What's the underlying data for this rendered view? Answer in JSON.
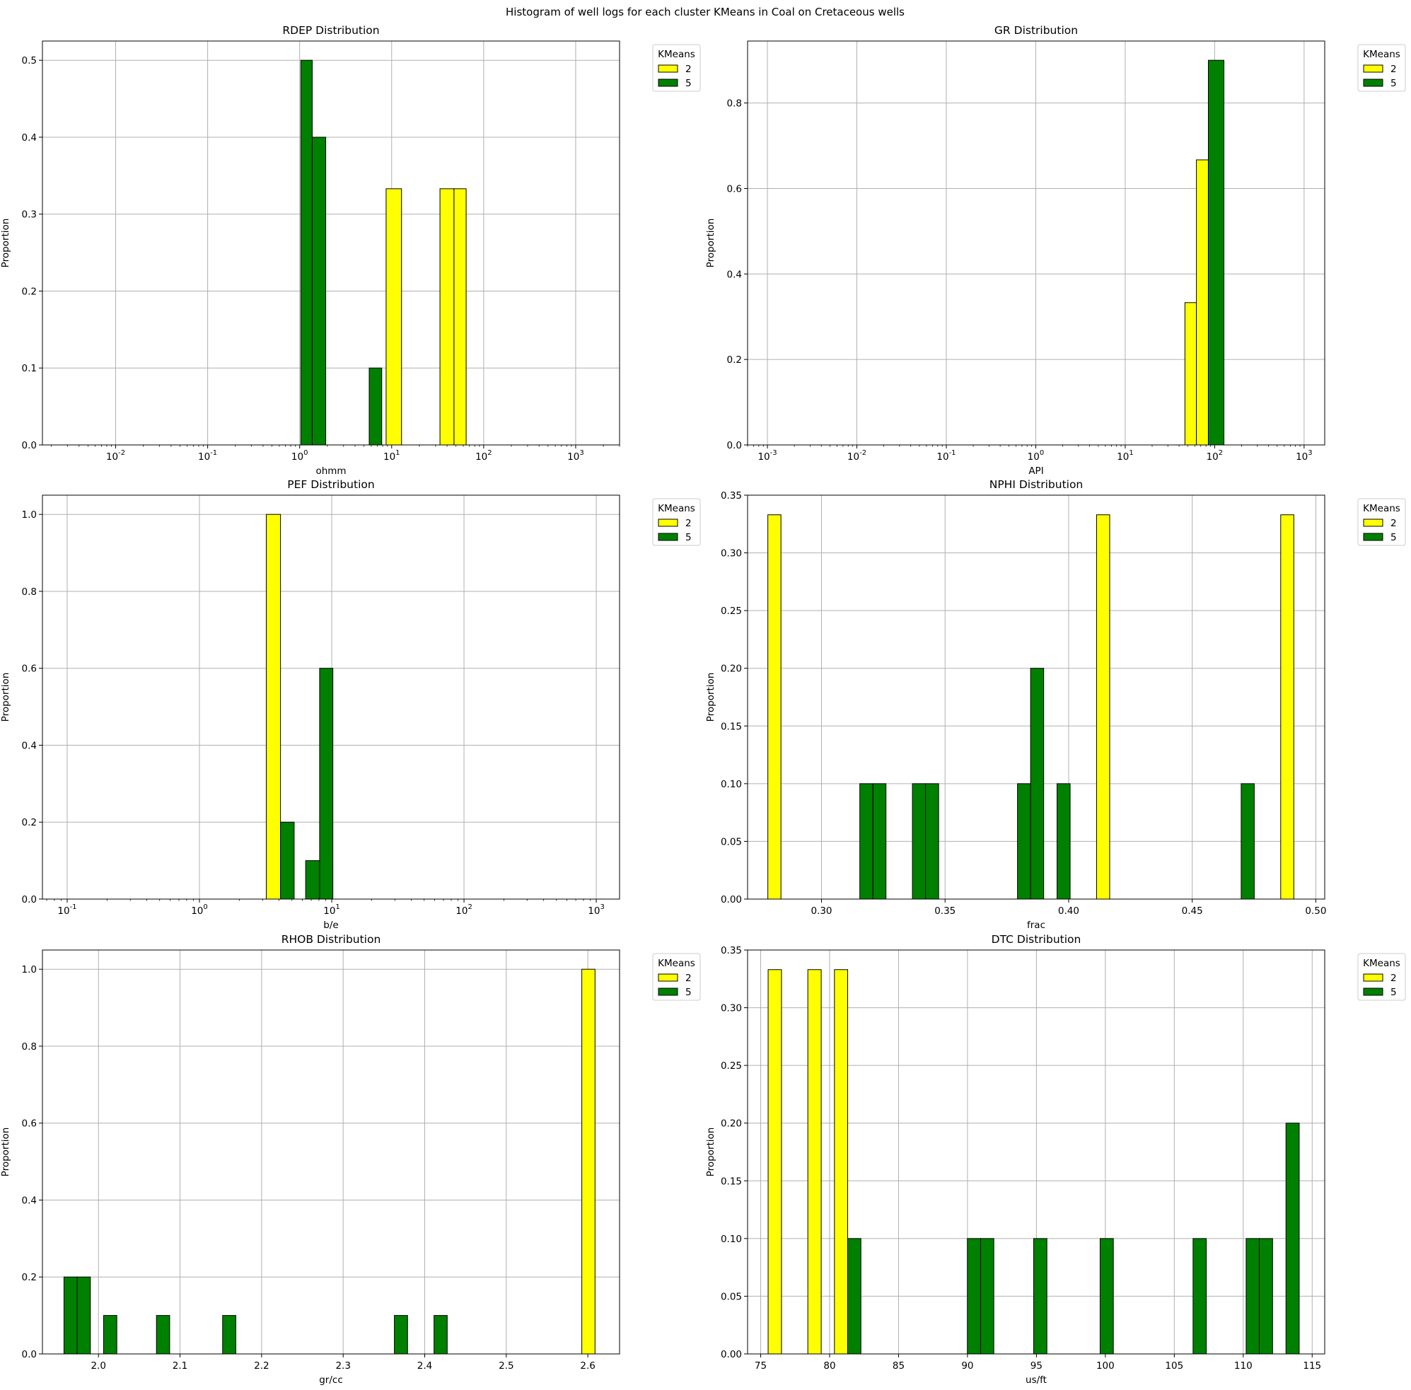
{
  "figure_title": "Histogram of well logs for each cluster KMeans in Coal on Cretaceous wells",
  "legend": {
    "title": "KMeans",
    "entries": [
      {
        "label": "2",
        "color": "#ffff00"
      },
      {
        "label": "5",
        "color": "#008000"
      }
    ]
  },
  "chart_data": [
    {
      "type": "bar",
      "title": "RDEP Distribution",
      "xlabel": "ohmm",
      "ylabel": "Proportion",
      "xscale": "log",
      "xlim": [
        0.0016,
        3000
      ],
      "ylim": [
        0,
        0.525
      ],
      "xticks": [
        0.01,
        0.1,
        1,
        10,
        100,
        1000
      ],
      "xticklabels": [
        "10^-2",
        "10^-1",
        "10^0",
        "10^1",
        "10^2",
        "10^3"
      ],
      "yticks": [
        0,
        0.1,
        0.2,
        0.3,
        0.4,
        0.5
      ],
      "yticklabels": [
        "0.0",
        "0.1",
        "0.2",
        "0.3",
        "0.4",
        "0.5"
      ],
      "grid": true,
      "legend_position": "outside-top-right",
      "series": [
        {
          "name": "2",
          "color": "#ffff00",
          "bins": [
            [
              8.7,
              12.8,
              0.333
            ],
            [
              33.5,
              47.6,
              0.333
            ],
            [
              47.6,
              64.5,
              0.333
            ]
          ]
        },
        {
          "name": "5",
          "color": "#008000",
          "bins": [
            [
              1.03,
              1.37,
              0.5
            ],
            [
              1.37,
              1.92,
              0.4
            ],
            [
              5.7,
              7.8,
              0.1
            ]
          ]
        }
      ]
    },
    {
      "type": "bar",
      "title": "GR Distribution",
      "xlabel": "API",
      "ylabel": "Proportion",
      "xscale": "log",
      "xlim": [
        0.0006,
        1700
      ],
      "ylim": [
        0,
        0.945
      ],
      "xticks": [
        0.001,
        0.01,
        0.1,
        1,
        10,
        100,
        1000
      ],
      "xticklabels": [
        "10^-3",
        "10^-2",
        "10^-1",
        "10^0",
        "10^1",
        "10^2",
        "10^3"
      ],
      "yticks": [
        0,
        0.2,
        0.4,
        0.6,
        0.8
      ],
      "yticklabels": [
        "0.0",
        "0.2",
        "0.4",
        "0.6",
        "0.8"
      ],
      "grid": true,
      "legend_position": "outside-top-right",
      "series": [
        {
          "name": "2",
          "color": "#ffff00",
          "bins": [
            [
              46.5,
              62.5,
              0.333
            ],
            [
              62.5,
              85,
              0.667
            ]
          ]
        },
        {
          "name": "5",
          "color": "#008000",
          "bins": [
            [
              85,
              127,
              0.9
            ]
          ]
        }
      ]
    },
    {
      "type": "bar",
      "title": "PEF Distribution",
      "xlabel": "b/e",
      "ylabel": "Proportion",
      "xscale": "log",
      "xlim": [
        0.065,
        1500
      ],
      "ylim": [
        0,
        1.05
      ],
      "xticks": [
        0.1,
        1,
        10,
        100,
        1000
      ],
      "xticklabels": [
        "10^-1",
        "10^0",
        "10^1",
        "10^2",
        "10^3"
      ],
      "yticks": [
        0,
        0.2,
        0.4,
        0.6,
        0.8,
        1.0
      ],
      "yticklabels": [
        "0.0",
        "0.2",
        "0.4",
        "0.6",
        "0.8",
        "1.0"
      ],
      "grid": true,
      "legend_position": "outside-top-right",
      "series": [
        {
          "name": "2",
          "color": "#ffff00",
          "bins": [
            [
              3.2,
              4.1,
              1.0
            ]
          ]
        },
        {
          "name": "5",
          "color": "#008000",
          "bins": [
            [
              4.1,
              5.2,
              0.2
            ],
            [
              6.35,
              8.1,
              0.1
            ],
            [
              8.1,
              10.2,
              0.6
            ]
          ]
        }
      ]
    },
    {
      "type": "bar",
      "title": "NPHI Distribution",
      "xlabel": "frac",
      "ylabel": "Proportion",
      "xscale": "linear",
      "xlim": [
        0.2701,
        0.5036
      ],
      "ylim": [
        0,
        0.35
      ],
      "xticks": [
        0.3,
        0.35,
        0.4,
        0.45,
        0.5
      ],
      "xticklabels": [
        "0.30",
        "0.35",
        "0.40",
        "0.45",
        "0.50"
      ],
      "yticks": [
        0,
        0.05,
        0.1,
        0.15,
        0.2,
        0.25,
        0.3,
        0.35
      ],
      "yticklabels": [
        "0.00",
        "0.05",
        "0.10",
        "0.15",
        "0.20",
        "0.25",
        "0.30",
        "0.35"
      ],
      "grid": true,
      "legend_position": "outside-top-right",
      "series": [
        {
          "name": "2",
          "color": "#ffff00",
          "bins": [
            [
              0.2783,
              0.2836,
              0.333
            ],
            [
              0.4113,
              0.4166,
              0.333
            ],
            [
              0.4858,
              0.4911,
              0.333
            ]
          ]
        },
        {
          "name": "5",
          "color": "#008000",
          "bins": [
            [
              0.3155,
              0.3208,
              0.1
            ],
            [
              0.3208,
              0.3261,
              0.1
            ],
            [
              0.3368,
              0.3421,
              0.1
            ],
            [
              0.3421,
              0.3474,
              0.1
            ],
            [
              0.3793,
              0.3846,
              0.1
            ],
            [
              0.3846,
              0.3899,
              0.2
            ],
            [
              0.3953,
              0.4006,
              0.1
            ],
            [
              0.4698,
              0.4751,
              0.1
            ]
          ]
        }
      ]
    },
    {
      "type": "bar",
      "title": "RHOB Distribution",
      "xlabel": "gr/cc",
      "ylabel": "Proportion",
      "xscale": "linear",
      "xlim": [
        1.9313,
        2.6389
      ],
      "ylim": [
        0,
        1.05
      ],
      "xticks": [
        2.0,
        2.1,
        2.2,
        2.3,
        2.4,
        2.5,
        2.6
      ],
      "xticklabels": [
        "2.0",
        "2.1",
        "2.2",
        "2.3",
        "2.4",
        "2.5",
        "2.6"
      ],
      "yticks": [
        0,
        0.2,
        0.4,
        0.6,
        0.8,
        1.0
      ],
      "yticklabels": [
        "0.0",
        "0.2",
        "0.4",
        "0.6",
        "0.8",
        "1.0"
      ],
      "grid": true,
      "legend_position": "outside-top-right",
      "series": [
        {
          "name": "2",
          "color": "#ffff00",
          "bins": [
            [
              2.5926,
              2.6088,
              1.0
            ]
          ]
        },
        {
          "name": "5",
          "color": "#008000",
          "bins": [
            [
              1.9577,
              1.9739,
              0.2
            ],
            [
              1.9739,
              1.9901,
              0.2
            ],
            [
              2.0063,
              2.0225,
              0.1
            ],
            [
              2.0711,
              2.0873,
              0.1
            ],
            [
              2.1522,
              2.1684,
              0.1
            ],
            [
              2.3628,
              2.379,
              0.1
            ],
            [
              2.4114,
              2.4276,
              0.1
            ]
          ]
        }
      ]
    },
    {
      "type": "bar",
      "title": "DTC Distribution",
      "xlabel": "us/ft",
      "ylabel": "Proportion",
      "xscale": "linear",
      "xlim": [
        74.05,
        115.91
      ],
      "ylim": [
        0,
        0.35
      ],
      "xticks": [
        75,
        80,
        85,
        90,
        95,
        100,
        105,
        110,
        115
      ],
      "xticklabels": [
        "75",
        "80",
        "85",
        "90",
        "95",
        "100",
        "105",
        "110",
        "115"
      ],
      "yticks": [
        0,
        0.05,
        0.1,
        0.15,
        0.2,
        0.25,
        0.3,
        0.35
      ],
      "yticklabels": [
        "0.00",
        "0.05",
        "0.10",
        "0.15",
        "0.20",
        "0.25",
        "0.30",
        "0.35"
      ],
      "grid": true,
      "legend_position": "outside-top-right",
      "series": [
        {
          "name": "2",
          "color": "#ffff00",
          "bins": [
            [
              75.54,
              76.51,
              0.333
            ],
            [
              78.42,
              79.39,
              0.333
            ],
            [
              80.35,
              81.31,
              0.333
            ]
          ]
        },
        {
          "name": "5",
          "color": "#008000",
          "bins": [
            [
              81.31,
              82.27,
              0.1
            ],
            [
              89.99,
              90.95,
              0.1
            ],
            [
              90.95,
              91.91,
              0.1
            ],
            [
              94.8,
              95.76,
              0.1
            ],
            [
              99.62,
              100.58,
              0.1
            ],
            [
              106.36,
              107.32,
              0.1
            ],
            [
              110.21,
              111.17,
              0.1
            ],
            [
              111.17,
              112.13,
              0.1
            ],
            [
              113.1,
              114.06,
              0.2
            ]
          ]
        }
      ]
    }
  ]
}
